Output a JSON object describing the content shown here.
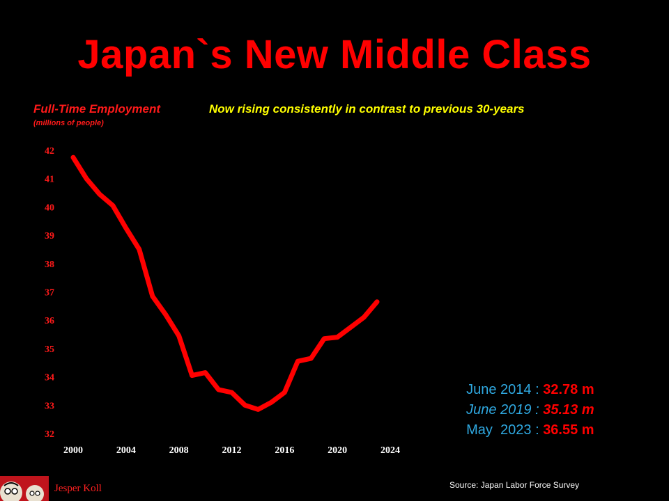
{
  "title": "Japan`s New Middle Class",
  "ylabel": "Full-Time Employment",
  "yunit": "(millions of people)",
  "subtitle": "Now rising consistently in contrast to previous 30-years",
  "annotations": [
    {
      "label": "June 2014 : ",
      "value": "32.78 m",
      "italic": false
    },
    {
      "label": "June 2019 : ",
      "value": "35.13 m",
      "italic": true
    },
    {
      "label": "May  2023 : ",
      "value": "36.55 m",
      "italic": false
    }
  ],
  "source": "Source: Japan Labor Force Survey",
  "author": "Jesper Koll",
  "colors": {
    "line": "#ff0000",
    "tick": "#ff1a1a",
    "annotation": "#2fa8e0",
    "subtitle": "#ffff00"
  },
  "chart_data": {
    "type": "line",
    "title": "Japan`s New Middle Class",
    "ylabel": "Full-Time Employment",
    "ylim": [
      32,
      42
    ],
    "xlim": [
      2000,
      2024
    ],
    "yticks": [
      32,
      33,
      34,
      35,
      36,
      37,
      38,
      39,
      40,
      41,
      42
    ],
    "xticks": [
      2000,
      2004,
      2008,
      2012,
      2016,
      2020,
      2024
    ],
    "grid": false,
    "series": [
      {
        "x": [
          2000,
          2001,
          2002,
          2003,
          2004,
          2005,
          2006,
          2007,
          2008,
          2009,
          2010,
          2011,
          2012,
          2013,
          2014,
          2015,
          2016,
          2017,
          2018,
          2019,
          2020,
          2021,
          2022,
          2023
        ],
        "y": [
          41.75,
          41.0,
          40.45,
          40.05,
          39.25,
          38.5,
          36.85,
          36.2,
          35.45,
          34.05,
          34.15,
          33.55,
          33.45,
          33.0,
          32.85,
          33.1,
          33.45,
          34.55,
          34.65,
          35.35,
          35.4,
          35.75,
          36.1,
          36.65
        ]
      }
    ]
  }
}
